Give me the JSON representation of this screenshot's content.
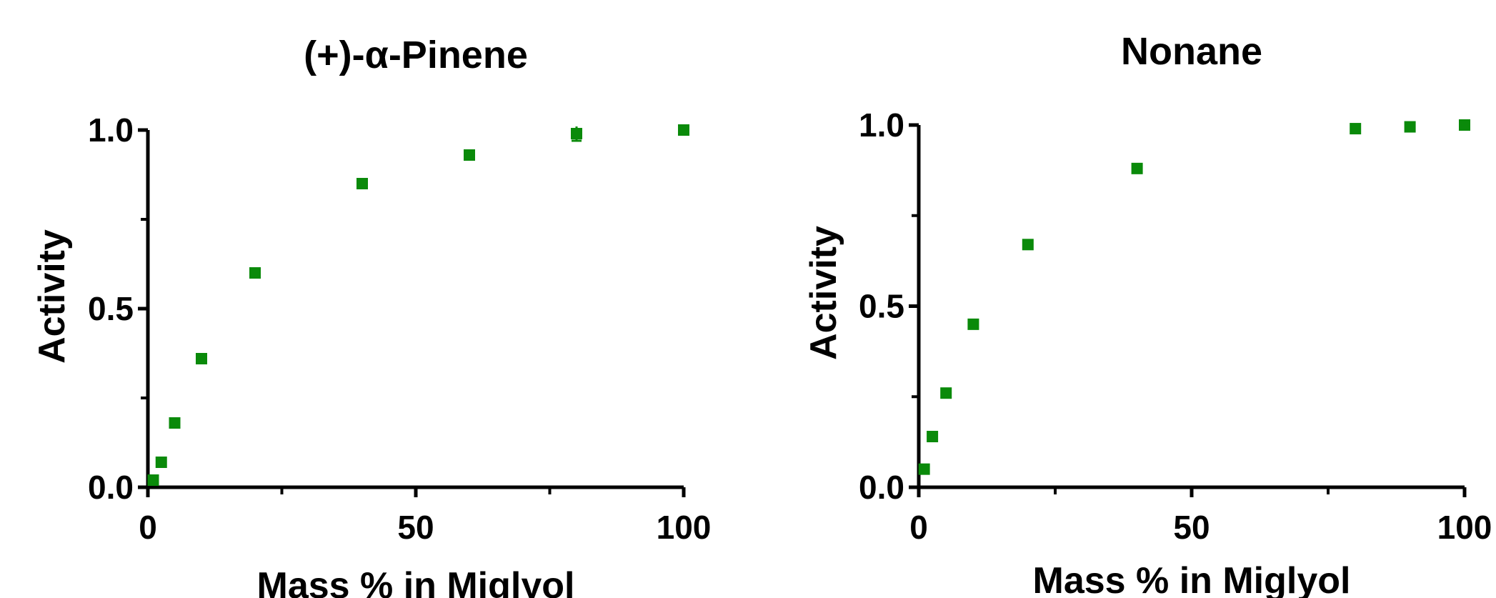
{
  "chart_data": [
    {
      "type": "scatter",
      "title": "(+)-α-Pinene",
      "xlabel": "Mass % in Miglyol",
      "ylabel": "Activity",
      "xlim": [
        0,
        100
      ],
      "ylim": [
        0,
        1.0
      ],
      "x_ticks": [
        0,
        50,
        100
      ],
      "x_minor_ticks": [
        25,
        75
      ],
      "y_ticks": [
        0.0,
        0.5,
        1.0
      ],
      "y_tick_labels": [
        "0.0",
        "0.5",
        "1.0"
      ],
      "y_minor_ticks": [
        0.25,
        0.75
      ],
      "marker": "square",
      "color": "#0a8a0a",
      "grid": false,
      "series": [
        {
          "x": [
            1,
            2.5,
            5,
            10,
            20,
            40,
            60,
            80,
            100
          ],
          "y": [
            0.02,
            0.07,
            0.18,
            0.36,
            0.6,
            0.85,
            0.93,
            0.99,
            1.0
          ],
          "y_err": [
            0,
            0,
            0,
            0,
            0,
            0.005,
            0.01,
            0.02,
            0
          ]
        }
      ]
    },
    {
      "type": "scatter",
      "title": "Nonane",
      "xlabel": "Mass % in Miglyol",
      "ylabel": "Activity",
      "xlim": [
        0,
        100
      ],
      "ylim": [
        0,
        1.0
      ],
      "x_ticks": [
        0,
        50,
        100
      ],
      "x_minor_ticks": [
        25,
        75
      ],
      "y_ticks": [
        0.0,
        0.5,
        1.0
      ],
      "y_tick_labels": [
        "0.0",
        "0.5",
        "1.0"
      ],
      "y_minor_ticks": [
        0.25,
        0.75
      ],
      "marker": "square",
      "color": "#0a8a0a",
      "grid": false,
      "series": [
        {
          "x": [
            1,
            2.5,
            5,
            10,
            20,
            40,
            80,
            90,
            100
          ],
          "y": [
            0.05,
            0.14,
            0.26,
            0.45,
            0.67,
            0.88,
            0.99,
            0.995,
            1.0
          ],
          "y_err": [
            0,
            0,
            0,
            0,
            0,
            0,
            0,
            0,
            0
          ]
        }
      ]
    }
  ]
}
